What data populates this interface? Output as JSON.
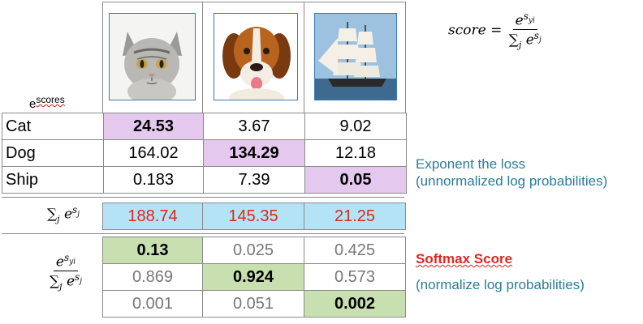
{
  "formula": {
    "lhs": "score",
    "equals": "=",
    "numerator": "e",
    "numerator_exp": "s",
    "numerator_sub": "yi",
    "denominator_sum": "∑",
    "denominator_sum_sub": "j",
    "denominator_e": "e",
    "denominator_exp": "s",
    "denominator_exp_sub": "j"
  },
  "corner_label": {
    "base": "e",
    "sup": "scores"
  },
  "classes": [
    "Cat",
    "Dog",
    "Ship"
  ],
  "exp_scores": [
    [
      "24.53",
      "3.67",
      "9.02"
    ],
    [
      "164.02",
      "134.29",
      "12.18"
    ],
    [
      "0.183",
      "7.39",
      "0.05"
    ]
  ],
  "sum_row": {
    "label_sum": "∑",
    "label_sub": "j",
    "label_e": "e",
    "label_exp": "s",
    "label_exp_sub": "j",
    "values": [
      "188.74",
      "145.35",
      "21.25"
    ]
  },
  "softmax": {
    "label_num_e": "e",
    "label_num_exp": "s",
    "label_num_exp_sub": "yi",
    "label_den_sum": "∑",
    "label_den_sub": "j",
    "label_den_e": "e",
    "label_den_exp": "s",
    "label_den_exp_sub": "j",
    "rows": [
      [
        "0.13",
        "0.025",
        "0.425"
      ],
      [
        "0.869",
        "0.924",
        "0.573"
      ],
      [
        "0.001",
        "0.051",
        "0.002"
      ]
    ]
  },
  "annotations": {
    "exponent_title": "Exponent the loss",
    "exponent_sub": "(unnormalized log probabilities)",
    "softmax_title": "Softmax Score",
    "softmax_sub": "(normalize log probabilities)"
  },
  "images": [
    "cat-photo",
    "dog-photo",
    "ship-photo"
  ],
  "colors": {
    "correct_score": "#e4c8ee",
    "sum_row": "#b3e3f5",
    "softmax_correct": "#c8dfb0",
    "red_text": "#e0261e",
    "teal_text": "#2a7d9c"
  }
}
